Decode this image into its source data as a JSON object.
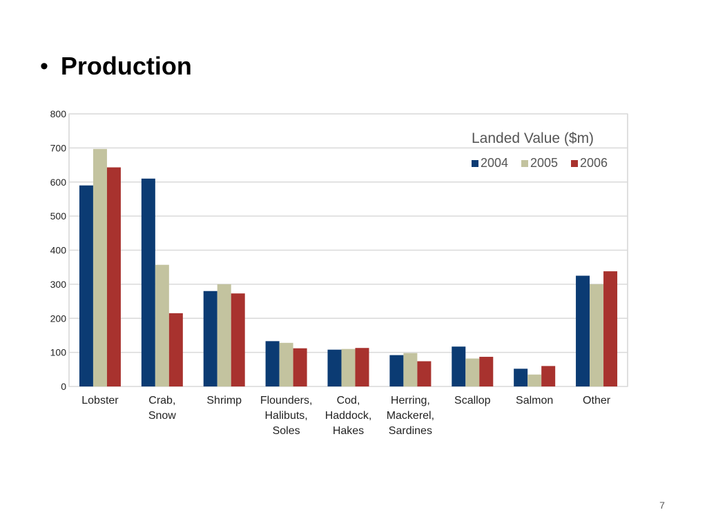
{
  "slide": {
    "bullet": "•",
    "title": "Production",
    "page_number": "7"
  },
  "colors": {
    "2004": "#0b3b73",
    "2005": "#c3c39f",
    "2006": "#a8322e",
    "grid": "#d9d9d9",
    "axis_text": "#222222"
  },
  "chart_data": {
    "type": "bar",
    "title": "Landed Value ($m)",
    "xlabel": "",
    "ylabel": "",
    "ylim": [
      0,
      800
    ],
    "yticks": [
      0,
      100,
      200,
      300,
      400,
      500,
      600,
      700,
      800
    ],
    "grid": true,
    "legend_position": "top-right",
    "categories": [
      [
        "Lobster"
      ],
      [
        "Crab,",
        "Snow"
      ],
      [
        "Shrimp"
      ],
      [
        "Flounders,",
        "Halibuts,",
        "Soles"
      ],
      [
        "Cod,",
        "Haddock,",
        "Hakes"
      ],
      [
        "Herring,",
        "Mackerel,",
        "Sardines"
      ],
      [
        "Scallop"
      ],
      [
        "Salmon"
      ],
      [
        "Other"
      ]
    ],
    "series": [
      {
        "name": "2004",
        "values": [
          590,
          610,
          280,
          133,
          108,
          92,
          117,
          52,
          325
        ]
      },
      {
        "name": "2005",
        "values": [
          697,
          357,
          300,
          128,
          110,
          98,
          82,
          35,
          300
        ]
      },
      {
        "name": "2006",
        "values": [
          643,
          215,
          273,
          112,
          113,
          74,
          87,
          60,
          338
        ]
      }
    ]
  }
}
